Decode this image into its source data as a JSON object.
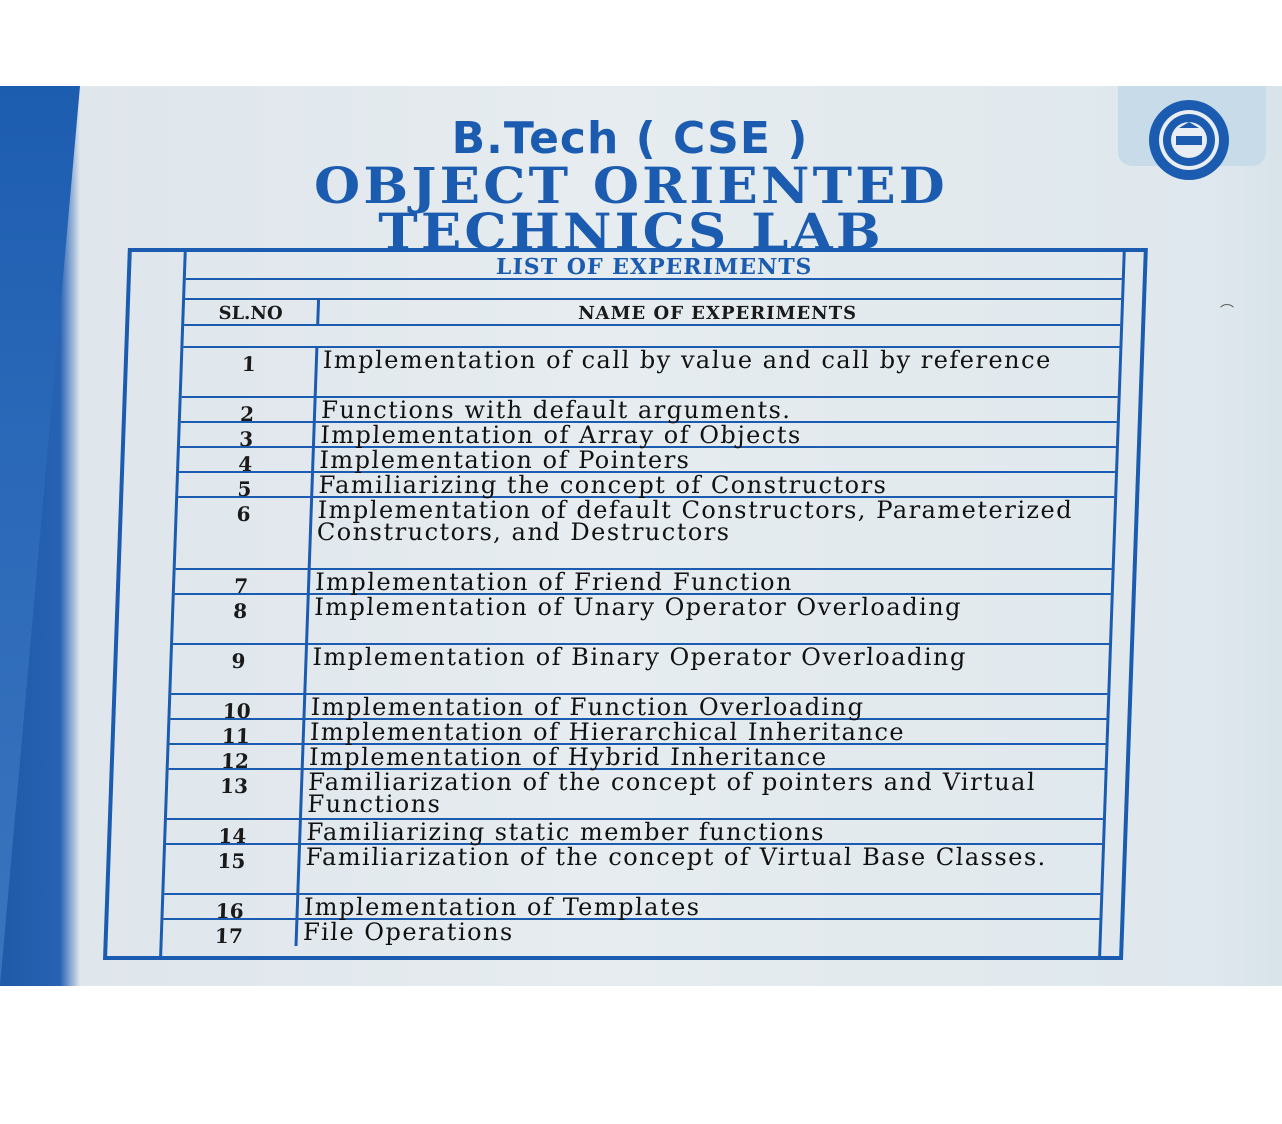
{
  "header": {
    "course": "B.Tech ( CSE )",
    "lab_title_line1": "OBJECT ORIENTED",
    "lab_title_line2": "TECHNICS LAB"
  },
  "table": {
    "title": "LIST OF EXPERIMENTS",
    "col_no": "SL.NO",
    "col_name": "NAME OF EXPERIMENTS",
    "rows": [
      {
        "no": "1",
        "name": "Implementation of call by value and call by reference"
      },
      {
        "no": "2",
        "name": "Functions with default arguments."
      },
      {
        "no": "3",
        "name": "Implementation of Array of Objects"
      },
      {
        "no": "4",
        "name": "Implementation of Pointers"
      },
      {
        "no": "5",
        "name": "Familiarizing the concept of Constructors"
      },
      {
        "no": "6",
        "name": "Implementation of default Constructors, Parameterized Constructors, and Destructors"
      },
      {
        "no": "7",
        "name": "Implementation of Friend Function"
      },
      {
        "no": "8",
        "name": "Implementation of Unary Operator Overloading"
      },
      {
        "no": "9",
        "name": "Implementation of Binary Operator Overloading"
      },
      {
        "no": "10",
        "name": "Implementation of Function Overloading"
      },
      {
        "no": "11",
        "name": "Implementation of Hierarchical Inheritance"
      },
      {
        "no": "12",
        "name": "Implementation of Hybrid Inheritance"
      },
      {
        "no": "13",
        "name": "Familiarization of the concept of pointers and Virtual Functions"
      },
      {
        "no": "14",
        "name": "Familiarizing static member functions"
      },
      {
        "no": "15",
        "name": "Familiarization of the concept of Virtual Base Classes."
      },
      {
        "no": "16",
        "name": "Implementation of Templates"
      },
      {
        "no": "17",
        "name": "File Operations"
      }
    ]
  },
  "colors": {
    "accent": "#1c5cb0",
    "board": "#e3eaee",
    "side": "#1f5aa8"
  },
  "logo": {
    "icon": "institute-seal-icon"
  }
}
